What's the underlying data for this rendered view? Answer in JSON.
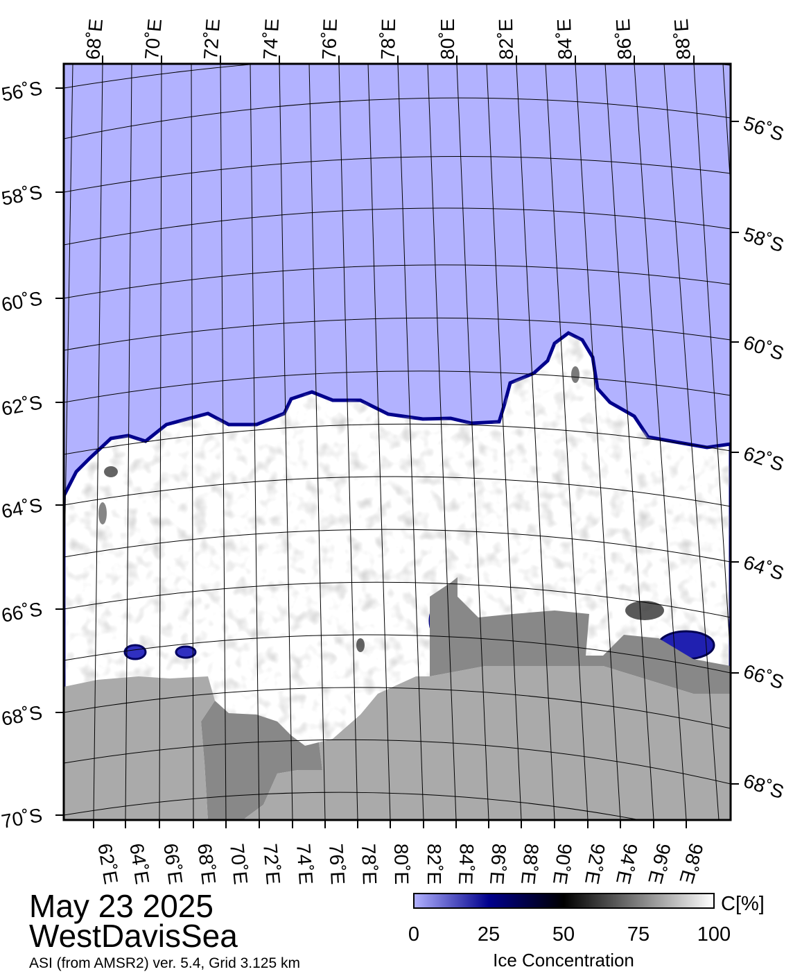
{
  "map": {
    "date": "May 23 2025",
    "region": "WestDavisSea",
    "source": "ASI (from AMSR2) ver. 5.4,  Grid 3.125 km",
    "colors": {
      "open_water": "#b2b2ff",
      "ice_edge": "#00008c",
      "high_concentration_ice": "#ffffff",
      "medium_ice": "#d0d0d0",
      "land": "#aaaaaa",
      "ice_shelf": "#888888",
      "grid": "#000000"
    }
  },
  "axes": {
    "top_lon": [
      "68˚E",
      "70˚E",
      "72˚E",
      "74˚E",
      "76˚E",
      "78˚E",
      "80˚E",
      "82˚E",
      "84˚E",
      "86˚E",
      "88˚E"
    ],
    "bottom_lon": [
      "62˚E",
      "64˚E",
      "66˚E",
      "68˚E",
      "70˚E",
      "72˚E",
      "74˚E",
      "76˚E",
      "78˚E",
      "80˚E",
      "82˚E",
      "84˚E",
      "86˚E",
      "88˚E",
      "90˚E",
      "92˚E",
      "94˚E",
      "96˚E",
      "98˚E"
    ],
    "left_lat": [
      "56˚S",
      "58˚S",
      "60˚S",
      "62˚S",
      "64˚S",
      "66˚S",
      "68˚S",
      "70˚S"
    ],
    "right_lat": [
      "56˚S",
      "58˚S",
      "60˚S",
      "62˚S",
      "64˚S",
      "66˚S",
      "68˚S"
    ]
  },
  "colorbar": {
    "unit": "C[%]",
    "title": "Ice Concentration",
    "ticks": [
      "0",
      "25",
      "50",
      "75",
      "100"
    ],
    "gradient": [
      "#b2b2ff",
      "#00008c",
      "#000000",
      "#ffffff"
    ]
  }
}
